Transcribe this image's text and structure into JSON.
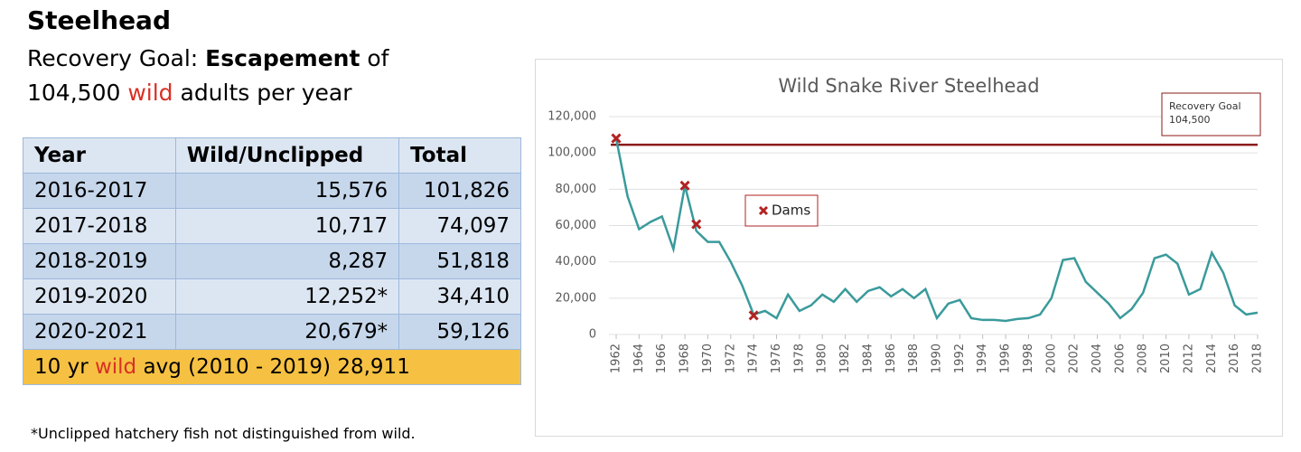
{
  "header": {
    "title": "Steelhead",
    "subtitle": [
      "Recovery Goal: ",
      "Escapement",
      " of",
      "104,500 ",
      "wild",
      " adults per year"
    ]
  },
  "table": {
    "columns": [
      "Year",
      "Wild/Unclipped",
      "Total"
    ],
    "rows": [
      [
        "2016-2017",
        "15,576",
        "101,826"
      ],
      [
        "2017-2018",
        "10,717",
        "74,097"
      ],
      [
        "2018-2019",
        "8,287",
        "51,818"
      ],
      [
        "2019-2020",
        "12,252*",
        "34,410"
      ],
      [
        "2020-2021",
        "20,679*",
        "59,126"
      ]
    ],
    "footer": [
      "10 yr ",
      "wild",
      " avg (2010 - 2019) 28,911"
    ]
  },
  "footnote": "*Unclipped hatchery fish not distinguished from wild.",
  "chart_data": {
    "type": "line",
    "title": "Wild Snake River Steelhead",
    "x": [
      1962,
      1963,
      1964,
      1965,
      1966,
      1967,
      1968,
      1969,
      1970,
      1971,
      1972,
      1973,
      1974,
      1975,
      1976,
      1977,
      1978,
      1979,
      1980,
      1981,
      1982,
      1983,
      1984,
      1985,
      1986,
      1987,
      1988,
      1989,
      1990,
      1991,
      1992,
      1993,
      1994,
      1995,
      1996,
      1997,
      1998,
      1999,
      2000,
      2001,
      2002,
      2003,
      2004,
      2005,
      2006,
      2007,
      2008,
      2009,
      2010,
      2011,
      2012,
      2013,
      2014,
      2015,
      2016,
      2017,
      2018
    ],
    "series": [
      {
        "color": "#3a9a9b",
        "values": [
          108000,
          76000,
          58000,
          62000,
          65000,
          47000,
          82000,
          57000,
          51000,
          51000,
          40000,
          27000,
          11000,
          13000,
          9000,
          22000,
          13000,
          16000,
          22000,
          18000,
          25000,
          18000,
          24000,
          26000,
          21000,
          25000,
          20000,
          25000,
          9000,
          17000,
          19000,
          9000,
          8000,
          8000,
          7500,
          8500,
          9000,
          11000,
          20000,
          41000,
          42000,
          29000,
          23000,
          17000,
          9000,
          14000,
          23000,
          42000,
          44000,
          39000,
          22000,
          25000,
          45000,
          34000,
          16000,
          11000,
          12000
        ]
      },
      {
        "name": "Dams",
        "color": "#b22222",
        "x": [
          1962,
          1968,
          1969,
          1974
        ],
        "values": [
          108000,
          82000,
          60700,
          10500
        ]
      }
    ],
    "goal": {
      "label": "Recovery Goal",
      "value": 104500,
      "value_label": "104,500",
      "color": "#8b1a1a"
    },
    "xlim": [
      1962,
      2018
    ],
    "xticks": [
      1962,
      1964,
      1966,
      1968,
      1970,
      1972,
      1974,
      1976,
      1978,
      1980,
      1982,
      1984,
      1986,
      1988,
      1990,
      1992,
      1994,
      1996,
      1998,
      2000,
      2002,
      2004,
      2006,
      2008,
      2010,
      2012,
      2014,
      2016,
      2018
    ],
    "ylim": [
      0,
      120000
    ],
    "yticks": [
      0,
      {
        "value": 20000,
        "label": "20,000"
      },
      {
        "value": 40000,
        "label": "40,000"
      },
      {
        "value": 60000,
        "label": "60,000"
      },
      {
        "value": 80000,
        "label": "80,000"
      },
      {
        "value": 100000,
        "label": "100,000"
      },
      {
        "value": 120000,
        "label": "120,000"
      }
    ],
    "grid": true
  }
}
